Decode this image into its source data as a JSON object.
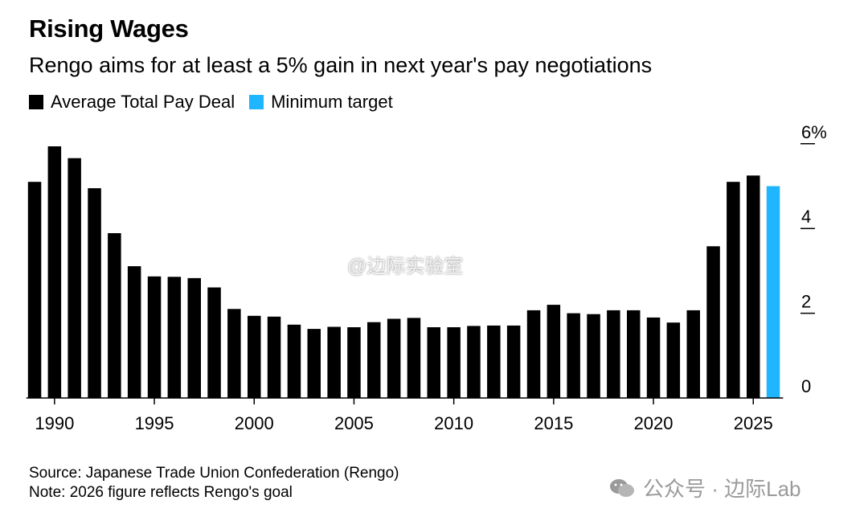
{
  "chart_data": {
    "type": "bar",
    "title": "Rising Wages",
    "subtitle": "Rengo aims for at least a 5% gain in next year's pay negotiations",
    "legend": [
      {
        "name": "Average Total Pay Deal",
        "color": "#000000"
      },
      {
        "name": "Minimum target",
        "color": "#1fb5ff"
      }
    ],
    "legend_placement": "top-left",
    "x": [
      1989,
      1990,
      1991,
      1992,
      1993,
      1994,
      1995,
      1996,
      1997,
      1998,
      1999,
      2000,
      2001,
      2002,
      2003,
      2004,
      2005,
      2006,
      2007,
      2008,
      2009,
      2010,
      2011,
      2012,
      2013,
      2014,
      2015,
      2016,
      2017,
      2018,
      2019,
      2020,
      2021,
      2022,
      2023,
      2024,
      2025,
      2026
    ],
    "series": [
      {
        "name": "Average Total Pay Deal",
        "color": "#000000",
        "values": [
          5.1,
          5.94,
          5.66,
          4.95,
          3.89,
          3.11,
          2.87,
          2.86,
          2.83,
          2.61,
          2.1,
          1.94,
          1.92,
          1.73,
          1.63,
          1.68,
          1.67,
          1.79,
          1.87,
          1.89,
          1.67,
          1.67,
          1.7,
          1.71,
          1.71,
          2.07,
          2.2,
          2.0,
          1.98,
          2.07,
          2.07,
          1.9,
          1.78,
          2.07,
          3.58,
          5.1,
          5.25,
          null
        ]
      },
      {
        "name": "Minimum target",
        "color": "#1fb5ff",
        "values": [
          null,
          null,
          null,
          null,
          null,
          null,
          null,
          null,
          null,
          null,
          null,
          null,
          null,
          null,
          null,
          null,
          null,
          null,
          null,
          null,
          null,
          null,
          null,
          null,
          null,
          null,
          null,
          null,
          null,
          null,
          null,
          null,
          null,
          null,
          null,
          null,
          null,
          5.0
        ]
      }
    ],
    "x_ticks": [
      "1990",
      "1995",
      "2000",
      "2005",
      "2010",
      "2015",
      "2020",
      "2025"
    ],
    "y_ticks": [
      "0",
      "2",
      "4",
      "6%"
    ],
    "y_tick_values": [
      0,
      2,
      4,
      6
    ],
    "ylim": [
      0,
      6
    ],
    "xlim": [
      1989,
      2026
    ],
    "grid": false,
    "y_axis_side": "right"
  },
  "footer": {
    "source": "Source: Japanese Trade Union Confederation (Rengo)",
    "note": "Note: 2026 figure reflects Rengo's goal"
  },
  "watermarks": {
    "center": "@边际实验室",
    "corner": "公众号 · 边际Lab"
  }
}
